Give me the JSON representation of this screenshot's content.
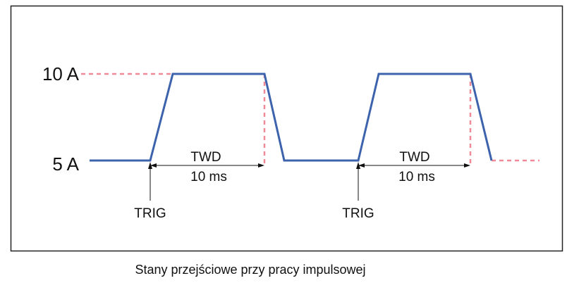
{
  "levels": {
    "high": "10 A",
    "low": "5 A"
  },
  "pulses": [
    {
      "label": "TWD",
      "duration": "10 ms",
      "trigger": "TRIG"
    },
    {
      "label": "TWD",
      "duration": "10 ms",
      "trigger": "TRIG"
    }
  ],
  "caption": "Stany przejściowe przy pracy impulsowej"
}
